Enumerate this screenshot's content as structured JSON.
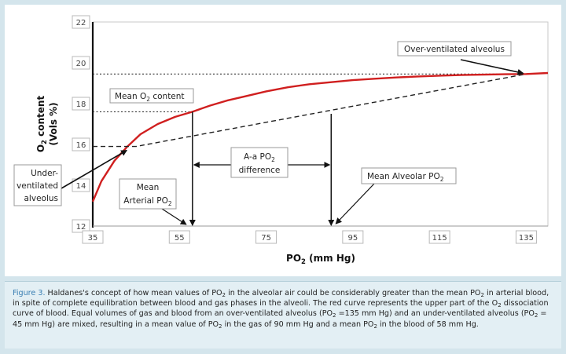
{
  "chart_data": {
    "type": "line",
    "title": "",
    "xlabel": "PO₂ (mm Hg)",
    "ylabel": "O₂ content (Vols %)",
    "ylabel_lines": [
      "O₂ content",
      "(Vols %)"
    ],
    "xlim": [
      35,
      140
    ],
    "ylim": [
      12,
      22
    ],
    "x_ticks": [
      35,
      55,
      75,
      95,
      115,
      135
    ],
    "y_ticks": [
      12,
      14,
      16,
      18,
      20,
      22
    ],
    "series": [
      {
        "name": "Dissociation curve (red)",
        "color": "#d01f1f",
        "x": [
          35,
          37,
          40,
          43,
          46,
          50,
          54,
          58,
          62,
          66,
          70,
          75,
          80,
          85,
          90,
          95,
          100,
          105,
          110,
          115,
          120,
          125,
          130,
          135,
          140
        ],
        "y": [
          13.2,
          14.2,
          15.2,
          15.9,
          16.5,
          17.0,
          17.35,
          17.6,
          17.9,
          18.15,
          18.35,
          18.6,
          18.8,
          18.95,
          19.05,
          19.15,
          19.22,
          19.28,
          19.33,
          19.37,
          19.4,
          19.42,
          19.44,
          19.45,
          19.5
        ]
      },
      {
        "name": "Mixing line (dashed)",
        "color": "#222222",
        "x": [
          35,
          45,
          135
        ],
        "y": [
          15.9,
          15.9,
          19.45
        ]
      }
    ],
    "reference_lines": [
      {
        "name": "Mean O₂ content level",
        "y": 17.6,
        "x_from": 35,
        "x_to": 58
      },
      {
        "name": "Over-ventilated level",
        "y": 19.45,
        "x_from": 35,
        "x_to": 135
      }
    ],
    "arrows": {
      "mean_arterial_po2": 58,
      "mean_alveolar_po2": 90,
      "a_a_difference": [
        58,
        90
      ],
      "under_point": {
        "x": 45,
        "y": 15.9
      },
      "over_point": {
        "x": 135,
        "y": 19.45
      }
    },
    "annotations": {
      "over_ventilated": "Over-ventilated alveolus",
      "mean_o2_content_prefix": "Mean O",
      "mean_o2_content_sub": "2",
      "mean_o2_content_suffix": " content",
      "under_ventilated_lines": [
        "Under-",
        "ventilated",
        "alveolus"
      ],
      "aa_line1_prefix": "A-a PO",
      "aa_line1_sub": "2",
      "aa_line2": "difference",
      "mean_alveolar_prefix": "Mean Alveolar PO",
      "mean_alveolar_sub": "2",
      "mean_arterial_line1": "Mean",
      "mean_arterial_line2_prefix": "Arterial PO",
      "mean_arterial_line2_sub": "2"
    }
  },
  "caption": {
    "label": "Figure 3.",
    "text_1": " Haldanes's concept of how mean values of PO",
    "sub_1": "2",
    "text_2": " in the alveolar air could be considerably greater than the mean PO",
    "sub_2": "2",
    "text_3": " in arterial blood, in spite of complete equilibration between blood and gas phases in the alveoli. The red curve represents the upper part of the O",
    "sub_3": "2",
    "text_4": " dissociation curve of blood. Equal volumes of gas and blood from an over-ventilated alveolus (PO",
    "sub_4": "2",
    "text_5": " =135 mm Hg) and an under-ventilated alveolus (PO",
    "sub_5": "2",
    "text_6": " = 45 mm Hg) are mixed, resulting in a mean value of PO",
    "sub_6": "2",
    "text_7": " in the gas of 90 mm Hg and a mean PO",
    "sub_7": "2",
    "text_8": " in the blood of 58 mm Hg."
  }
}
